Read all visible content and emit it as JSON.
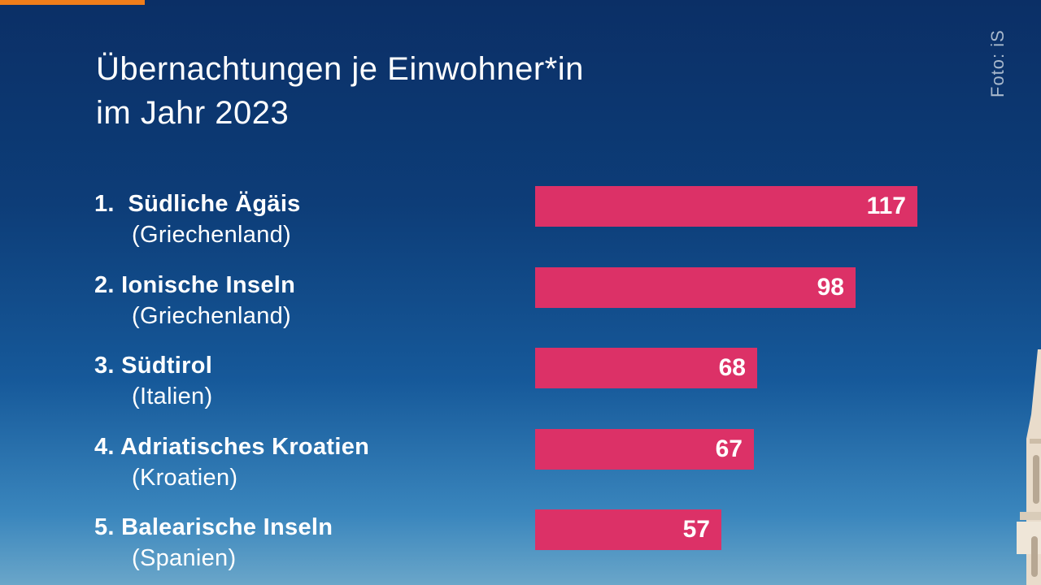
{
  "title_lines": [
    "Übernachtungen je Einwohner*in",
    "im Jahr 2023"
  ],
  "photo_credit": "Foto: iS",
  "colors": {
    "bar": "#dc3167",
    "accent": "#f07d1a",
    "background_top": "#0b2f66",
    "background_bottom": "#6aa6c9"
  },
  "chart_data": {
    "type": "bar",
    "orientation": "horizontal",
    "title": "Übernachtungen je Einwohner*in im Jahr 2023",
    "categories": [
      "1. Südliche Ägäis (Griechenland)",
      "2. Ionische Inseln (Griechenland)",
      "3. Südtirol (Italien)",
      "4. Adriatisches Kroatien (Kroatien)",
      "5. Balearische Inseln (Spanien)"
    ],
    "rows": [
      {
        "rank": "1.",
        "name": "Südliche Ägäis",
        "country": "(Griechenland)",
        "value": 117
      },
      {
        "rank": "2.",
        "name": "Ionische Inseln",
        "country": "(Griechenland)",
        "value": 98
      },
      {
        "rank": "3.",
        "name": "Südtirol",
        "country": "(Italien)",
        "value": 68
      },
      {
        "rank": "4.",
        "name": "Adriatisches Kroatien",
        "country": "(Kroatien)",
        "value": 67
      },
      {
        "rank": "5.",
        "name": "Balearische Inseln",
        "country": "(Spanien)",
        "value": 57
      }
    ],
    "values": [
      117,
      98,
      68,
      67,
      57
    ],
    "xlabel": "",
    "ylabel": "",
    "xlim": [
      0,
      117
    ],
    "grid": false,
    "legend": "none",
    "data_labels": "inside-end"
  }
}
